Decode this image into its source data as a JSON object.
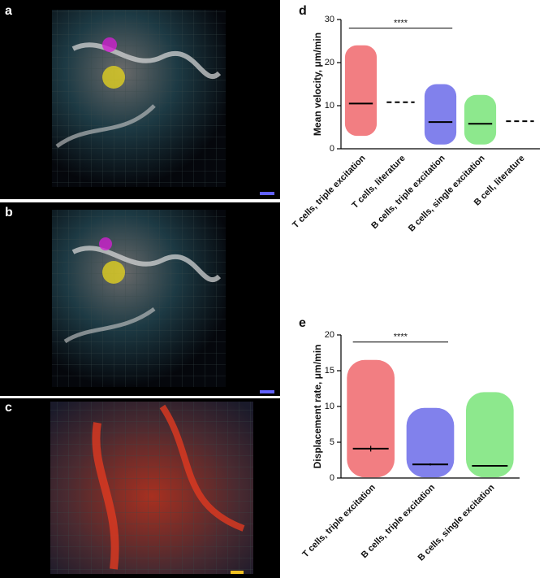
{
  "panels": [
    {
      "label": "a"
    },
    {
      "label": "b"
    },
    {
      "label": "c"
    }
  ],
  "chart_data": [
    {
      "type": "dot",
      "panel_label": "d",
      "ylabel": "Mean velocity, μm/min",
      "categories": [
        "T cells, triple excitation",
        "T cells, literature",
        "B cells, triple excitation",
        "B cells, single excitation",
        "B cell, literature"
      ],
      "values": [
        10.5,
        10.8,
        6.2,
        5.8,
        6.4
      ],
      "min": [
        3,
        null,
        1,
        1,
        null
      ],
      "max": [
        24,
        null,
        15,
        12.5,
        null
      ],
      "style": [
        "dots",
        "dashed",
        "dots",
        "dots",
        "dashed"
      ],
      "colors": [
        "#e8141c",
        "#000000",
        "#1a1adc",
        "#2fd62f",
        "#000000"
      ],
      "ylim": [
        0,
        30
      ],
      "yticks": [
        0,
        10,
        20,
        30
      ],
      "significance": {
        "from": 0,
        "to": 2,
        "y": 28,
        "label": "****"
      }
    },
    {
      "type": "dot",
      "panel_label": "e",
      "ylabel": "Displacement rate, μm/min",
      "categories": [
        "T cells, triple excitation",
        "B cells, triple excitation",
        "B cells, single excitation"
      ],
      "values": [
        4.1,
        1.9,
        1.7
      ],
      "errors": [
        0.4,
        0.15,
        0.1
      ],
      "min": [
        0.1,
        0.1,
        0.1
      ],
      "max": [
        16.5,
        9.8,
        12
      ],
      "style": [
        "dots",
        "dots",
        "dots"
      ],
      "colors": [
        "#e8141c",
        "#1a1adc",
        "#2fd62f"
      ],
      "ylim": [
        0,
        20
      ],
      "yticks": [
        0,
        5,
        10,
        15,
        20
      ],
      "significance": {
        "from": 0,
        "to": 1,
        "y": 19,
        "label": "****"
      }
    }
  ]
}
